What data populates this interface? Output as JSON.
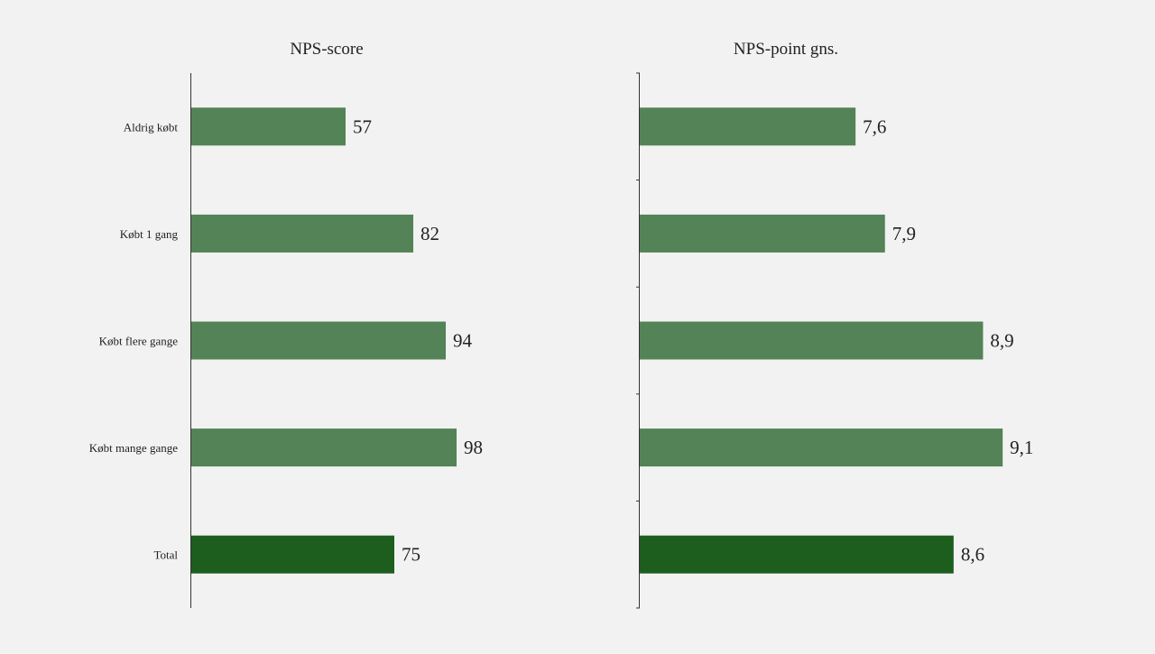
{
  "colors": {
    "background": "#f2f2f2",
    "bar": "#538356",
    "bar_total": "#1d5e1f",
    "axis": "#333333",
    "text": "#222222"
  },
  "chart_data": [
    {
      "type": "bar",
      "orientation": "horizontal",
      "title": "NPS-score",
      "categories": [
        "Aldrig købt",
        "Købt 1 gang",
        "Købt flere gange",
        "Købt mange gange",
        "Total"
      ],
      "values": [
        57,
        82,
        94,
        98,
        75
      ],
      "value_labels": [
        "57",
        "82",
        "94",
        "98",
        "75"
      ],
      "highlight_category": "Total",
      "xlim": [
        0,
        150
      ],
      "grid": false,
      "legend": "none"
    },
    {
      "type": "bar",
      "orientation": "horizontal",
      "title": "NPS-point gns.",
      "categories": [
        "Aldrig købt",
        "Købt 1 gang",
        "Købt flere gange",
        "Købt mange gange",
        "Total"
      ],
      "values": [
        7.6,
        7.9,
        8.9,
        9.1,
        8.6
      ],
      "value_labels": [
        "7,6",
        "7,9",
        "8,9",
        "9,1",
        "8,6"
      ],
      "highlight_category": "Total",
      "xlim": [
        5.4,
        10.0
      ],
      "grid": false,
      "legend": "none"
    }
  ]
}
